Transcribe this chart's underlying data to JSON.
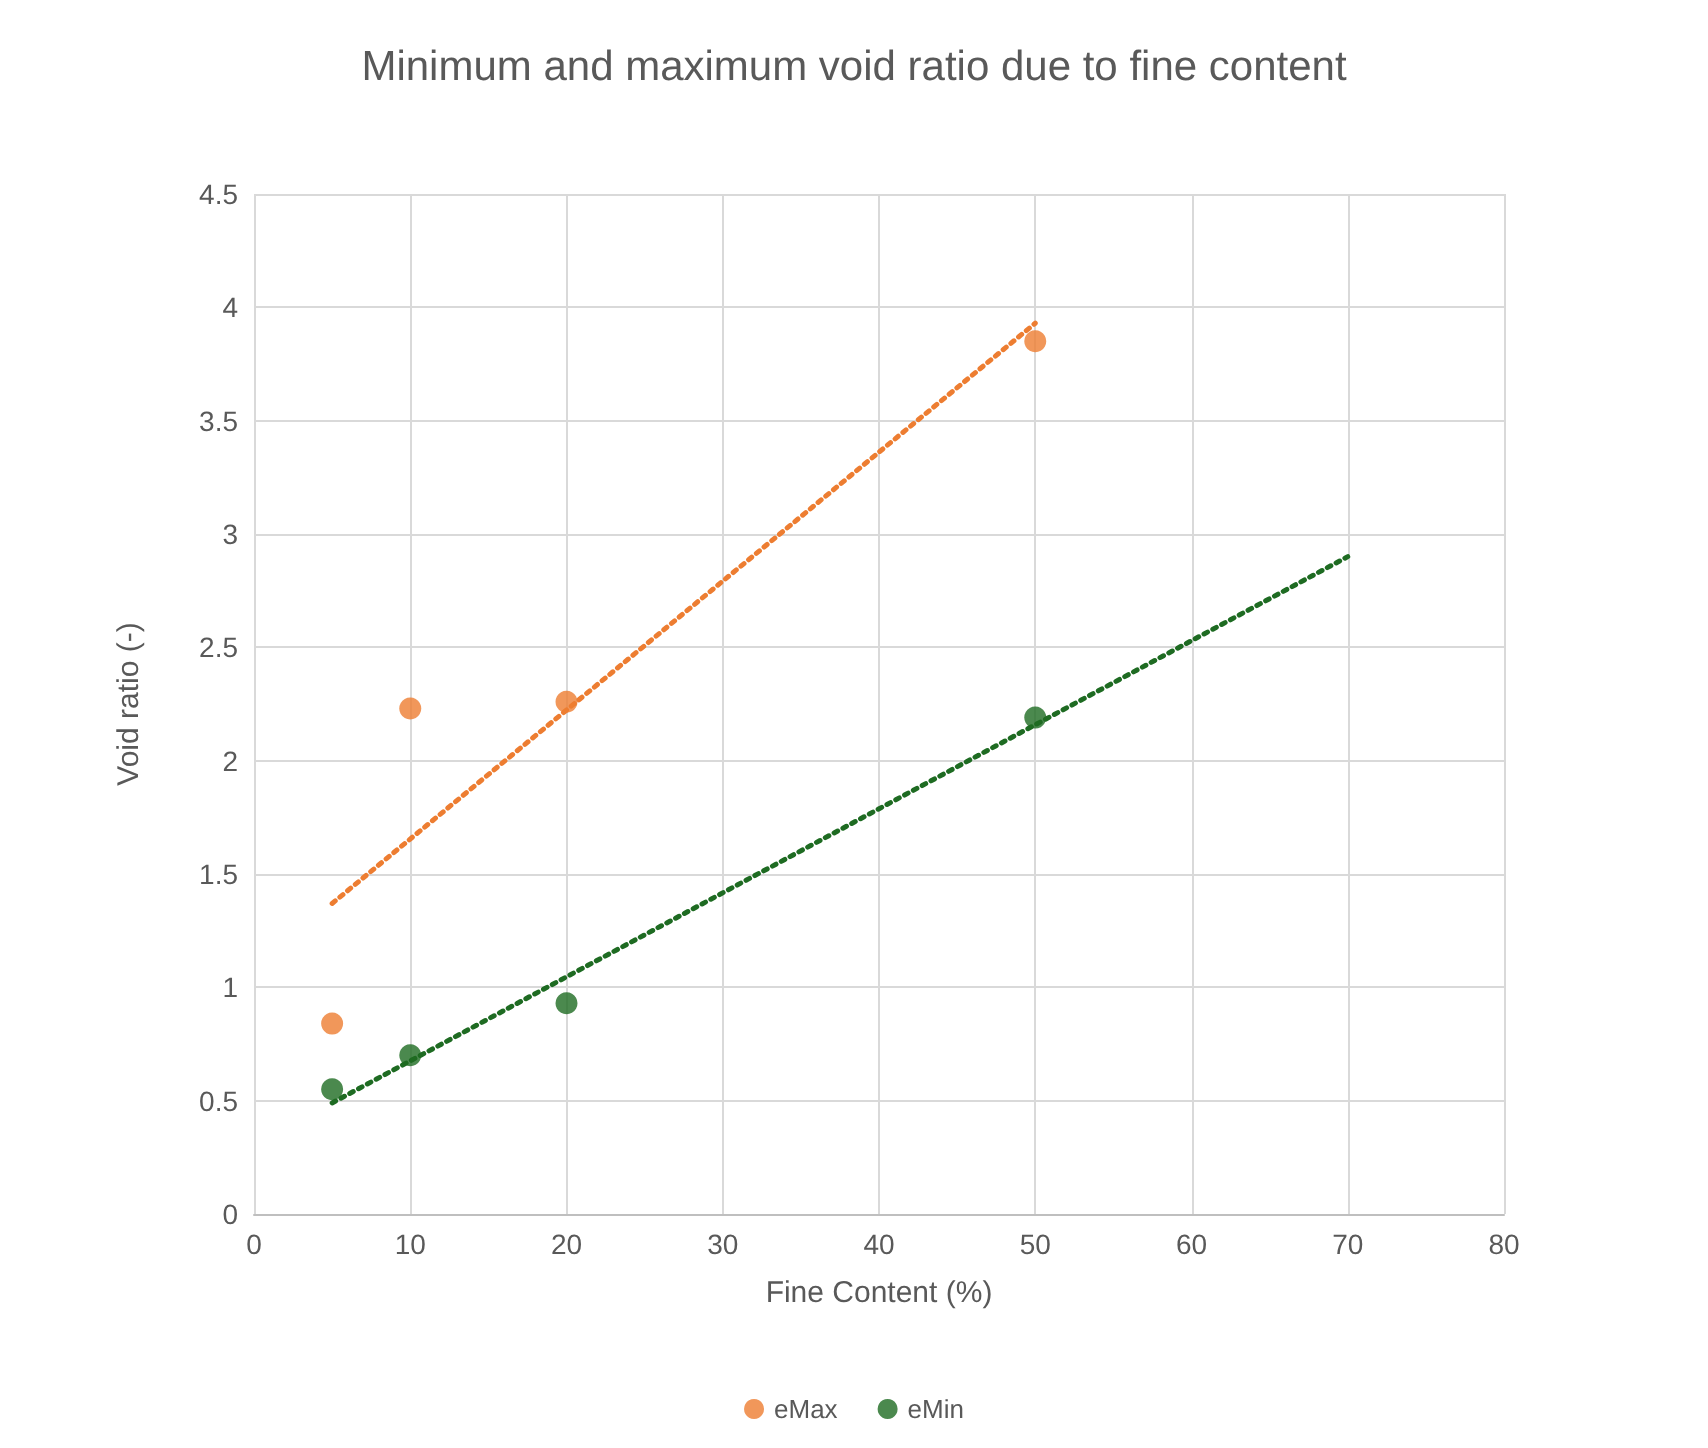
{
  "chart_data": {
    "type": "scatter",
    "title": "Minimum and maximum void ratio due to fine content",
    "xlabel": "Fine Content (%)",
    "ylabel": "Void ratio (-)",
    "xlim": [
      0,
      80
    ],
    "xticks": [
      0,
      10,
      20,
      30,
      40,
      50,
      60,
      70,
      80
    ],
    "ylim": [
      0,
      4.5
    ],
    "yticks": [
      0,
      0.5,
      1,
      1.5,
      2,
      2.5,
      3,
      3.5,
      4,
      4.5
    ],
    "grid": true,
    "legend": "bottom",
    "marker": "circle",
    "series": [
      {
        "name": "eMax",
        "color": "#ed7d31",
        "x": [
          5,
          10,
          20,
          50
        ],
        "values": [
          0.84,
          2.23,
          2.26,
          3.85
        ]
      },
      {
        "name": "eMin",
        "color": "#1e6b22",
        "x": [
          5,
          10,
          20,
          50
        ],
        "values": [
          0.55,
          0.7,
          0.93,
          2.19
        ]
      },
      {
        "type": "line",
        "color": "#ed7d31",
        "x": [
          5,
          50
        ],
        "values": [
          1.37,
          3.93
        ],
        "marker": "none",
        "line_style": "dotted"
      },
      {
        "type": "line",
        "color": "#1e6b22",
        "x": [
          5,
          70
        ],
        "values": [
          0.49,
          2.9
        ],
        "marker": "none",
        "line_style": "dotted"
      }
    ]
  }
}
